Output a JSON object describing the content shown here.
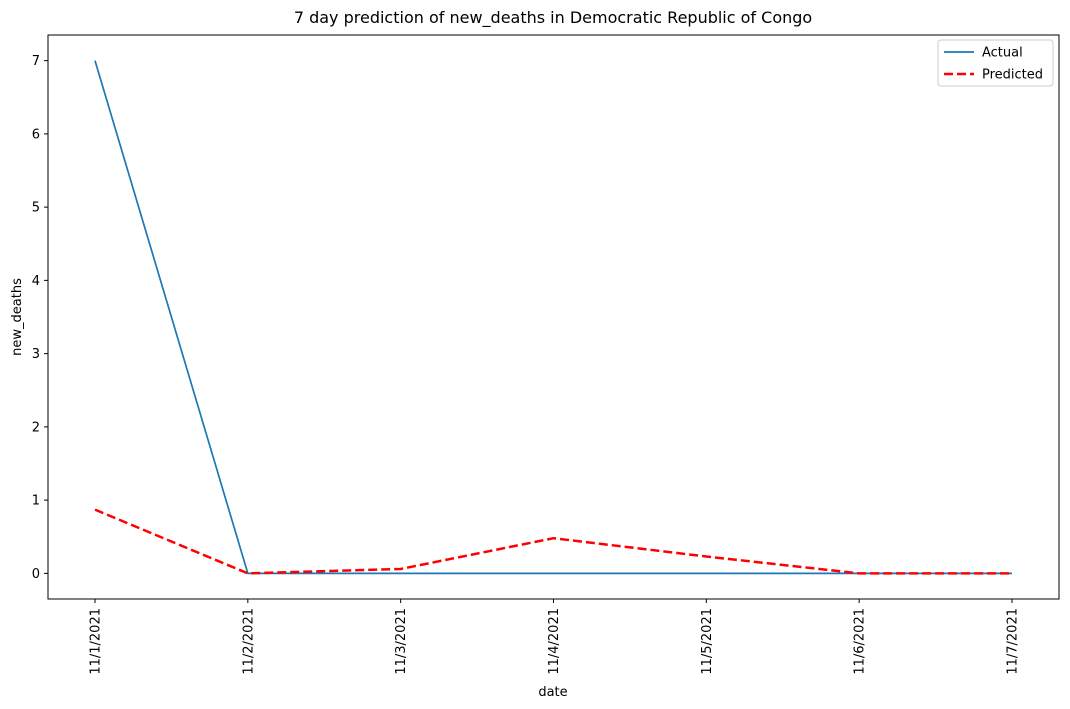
{
  "chart_data": {
    "type": "line",
    "title": "7 day prediction of new_deaths in Democratic Republic of Congo",
    "xlabel": "date",
    "ylabel": "new_deaths",
    "categories": [
      "11/1/2021",
      "11/2/2021",
      "11/3/2021",
      "11/4/2021",
      "11/5/2021",
      "11/6/2021",
      "11/7/2021"
    ],
    "ylim": [
      -0.35,
      7.35
    ],
    "yticks": [
      0,
      1,
      2,
      3,
      4,
      5,
      6,
      7
    ],
    "grid": false,
    "legend_position": "top-right",
    "series": [
      {
        "name": "Actual",
        "values": [
          7,
          0,
          0,
          0,
          0,
          0,
          0
        ],
        "color": "#1f77b4",
        "style": "solid"
      },
      {
        "name": "Predicted",
        "values": [
          0.87,
          0.0,
          0.06,
          0.48,
          0.23,
          0.0,
          0.0
        ],
        "color": "#ff0000",
        "style": "dashed"
      }
    ]
  }
}
